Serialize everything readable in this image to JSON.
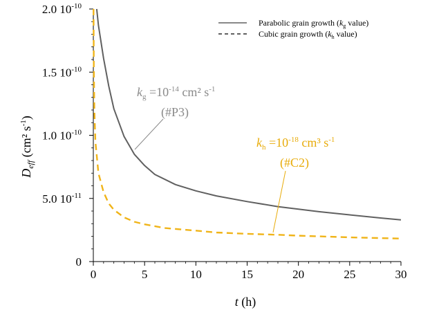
{
  "chart_data": {
    "type": "line",
    "xlabel": {
      "italic": "t",
      "rest": " (h)"
    },
    "ylabel": {
      "symbol": "D",
      "sub": "eff",
      "unit": " (cm² s",
      "unit_sup": "-1",
      "unit_end": ")"
    },
    "xlim": [
      0,
      30
    ],
    "ylim": [
      0,
      2e-10
    ],
    "x_ticks": [
      0,
      5,
      10,
      15,
      20,
      25,
      30
    ],
    "x_tick_labels": [
      "0",
      "5",
      "10",
      "15",
      "20",
      "25",
      "30"
    ],
    "y_ticks": [
      {
        "value": 0,
        "mant": "0",
        "exp": ""
      },
      {
        "value": 5e-11,
        "mant": "5.0 10",
        "exp": "-11"
      },
      {
        "value": 1e-10,
        "mant": "1.0 10",
        "exp": "-10"
      },
      {
        "value": 1.5e-10,
        "mant": "1.5 10",
        "exp": "-10"
      },
      {
        "value": 2e-10,
        "mant": "2.0 10",
        "exp": "-10"
      }
    ],
    "grid": false,
    "legend_position": "top-right",
    "series": [
      {
        "name": "Parabolic grain growth (kg value)",
        "legend": {
          "pre": "Parabolic grain growth (",
          "k": "k",
          "sub": "g",
          "post": " value)"
        },
        "color": "#606060",
        "style": "solid",
        "points": [
          [
            0.33,
            2e-10
          ],
          [
            0.5,
            1.87e-10
          ],
          [
            1,
            1.61e-10
          ],
          [
            1.5,
            1.39e-10
          ],
          [
            2,
            1.21e-10
          ],
          [
            3,
            9.9e-11
          ],
          [
            4,
            8.5e-11
          ],
          [
            5,
            7.6e-11
          ],
          [
            6,
            6.9e-11
          ],
          [
            8,
            6.1e-11
          ],
          [
            10,
            5.6e-11
          ],
          [
            12,
            5.2e-11
          ],
          [
            15,
            4.75e-11
          ],
          [
            18,
            4.35e-11
          ],
          [
            20,
            4.15e-11
          ],
          [
            22,
            3.95e-11
          ],
          [
            25,
            3.7e-11
          ],
          [
            28,
            3.45e-11
          ],
          [
            30,
            3.3e-11
          ]
        ]
      },
      {
        "name": "Cubic grain growth (kh value)",
        "legend": {
          "pre": "Cubic grain growth (",
          "k": "k",
          "sub": "h",
          "post": " value)"
        },
        "color": "#f0b419",
        "style": "dashed",
        "points": [
          [
            0.02,
            2e-10
          ],
          [
            0.05,
            1.55e-10
          ],
          [
            0.1,
            1.2e-10
          ],
          [
            0.2,
            9.5e-11
          ],
          [
            0.5,
            7e-11
          ],
          [
            1,
            5.5e-11
          ],
          [
            1.5,
            4.6e-11
          ],
          [
            2,
            4.1e-11
          ],
          [
            3,
            3.5e-11
          ],
          [
            4,
            3.15e-11
          ],
          [
            5,
            2.95e-11
          ],
          [
            7,
            2.65e-11
          ],
          [
            10,
            2.45e-11
          ],
          [
            12,
            2.3e-11
          ],
          [
            15,
            2.2e-11
          ],
          [
            18,
            2.12e-11
          ],
          [
            20,
            2.05e-11
          ],
          [
            25,
            1.92e-11
          ],
          [
            30,
            1.82e-11
          ]
        ]
      }
    ],
    "annotations": [
      {
        "id": "kg",
        "color": "#8a8a8a",
        "symbol": "k",
        "sub": "g",
        "text": " =10",
        "exp": "-14",
        "unit": " cm² s",
        "unit_exp": "-1",
        "label2": "(#P3)"
      },
      {
        "id": "kh",
        "color": "#e8ab08",
        "symbol": "k",
        "sub": "h",
        "text": " =10",
        "exp": "-18",
        "unit": " cm³ s",
        "unit_exp": "-1",
        "label2": "(#C2)"
      }
    ]
  }
}
